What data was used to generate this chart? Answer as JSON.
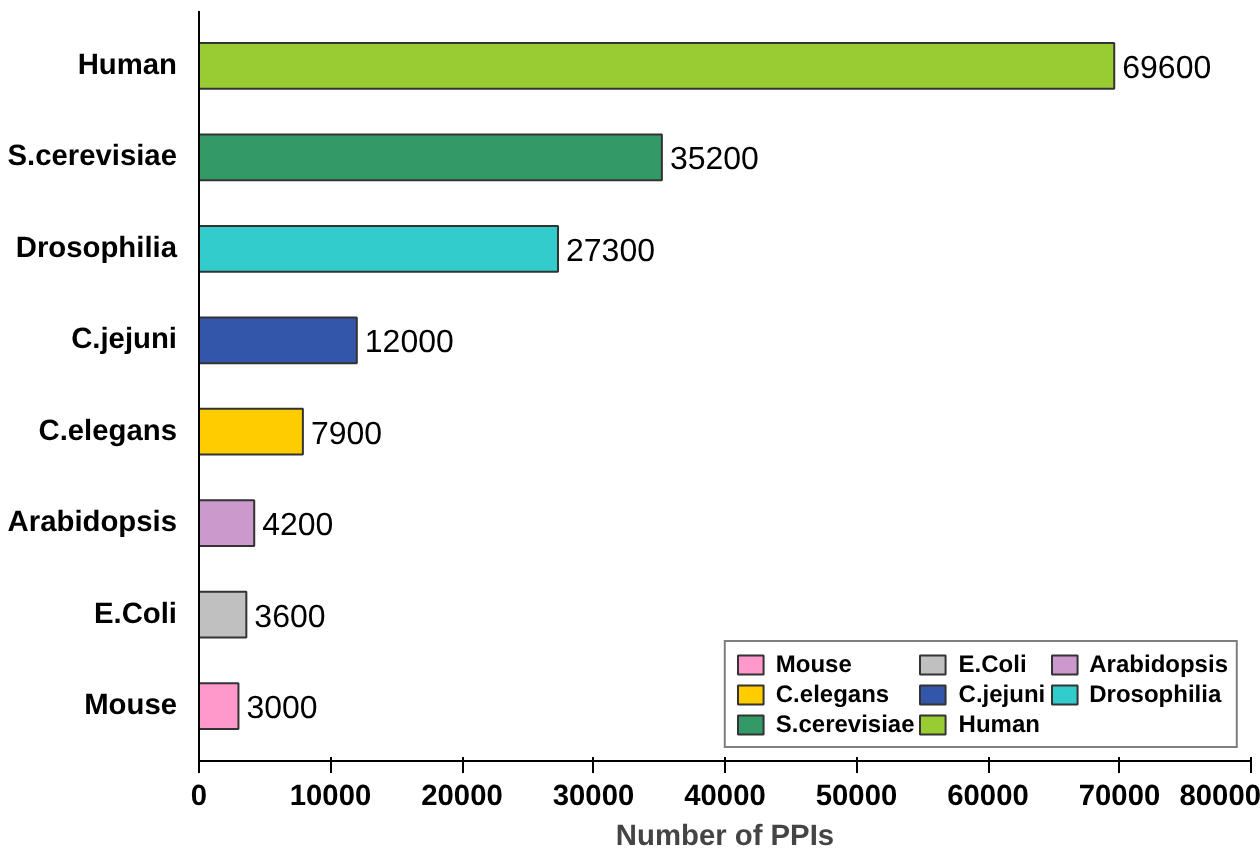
{
  "chart_data": {
    "type": "bar",
    "orientation": "horizontal",
    "xlabel": "Number of PPIs",
    "categories": [
      "Human",
      "S.cerevisiae",
      "Drosophilia",
      "C.jejuni",
      "C.elegans",
      "Arabidopsis",
      "E.Coli",
      "Mouse"
    ],
    "series": [
      {
        "name": "Mouse",
        "color": "#ff99cc",
        "values": [
          null,
          null,
          null,
          null,
          null,
          null,
          null,
          3000
        ]
      },
      {
        "name": "E.Coli",
        "color": "#c0c0c0",
        "values": [
          null,
          null,
          null,
          null,
          null,
          null,
          3600,
          null
        ]
      },
      {
        "name": "Arabidopsis",
        "color": "#cc99cc",
        "values": [
          null,
          null,
          null,
          null,
          null,
          4200,
          null,
          null
        ]
      },
      {
        "name": "C.elegans",
        "color": "#ffcc00",
        "values": [
          null,
          null,
          null,
          null,
          7900,
          null,
          null,
          null
        ]
      },
      {
        "name": "C.jejuni",
        "color": "#3355aa",
        "values": [
          null,
          null,
          null,
          12000,
          null,
          null,
          null,
          null
        ]
      },
      {
        "name": "Drosophilia",
        "color": "#33cccc",
        "values": [
          null,
          null,
          27300,
          null,
          null,
          null,
          null,
          null
        ]
      },
      {
        "name": "S.cerevisiae",
        "color": "#339966",
        "values": [
          null,
          35200,
          null,
          null,
          null,
          null,
          null,
          null
        ]
      },
      {
        "name": "Human",
        "color": "#99cc33",
        "values": [
          69600,
          null,
          null,
          null,
          null,
          null,
          null,
          null
        ]
      }
    ],
    "xlim": [
      0,
      80000
    ],
    "xticks": [
      0,
      10000,
      20000,
      30000,
      40000,
      50000,
      60000,
      70000,
      80000
    ],
    "data_labels": true,
    "legend": "bottom right",
    "grid": false
  }
}
